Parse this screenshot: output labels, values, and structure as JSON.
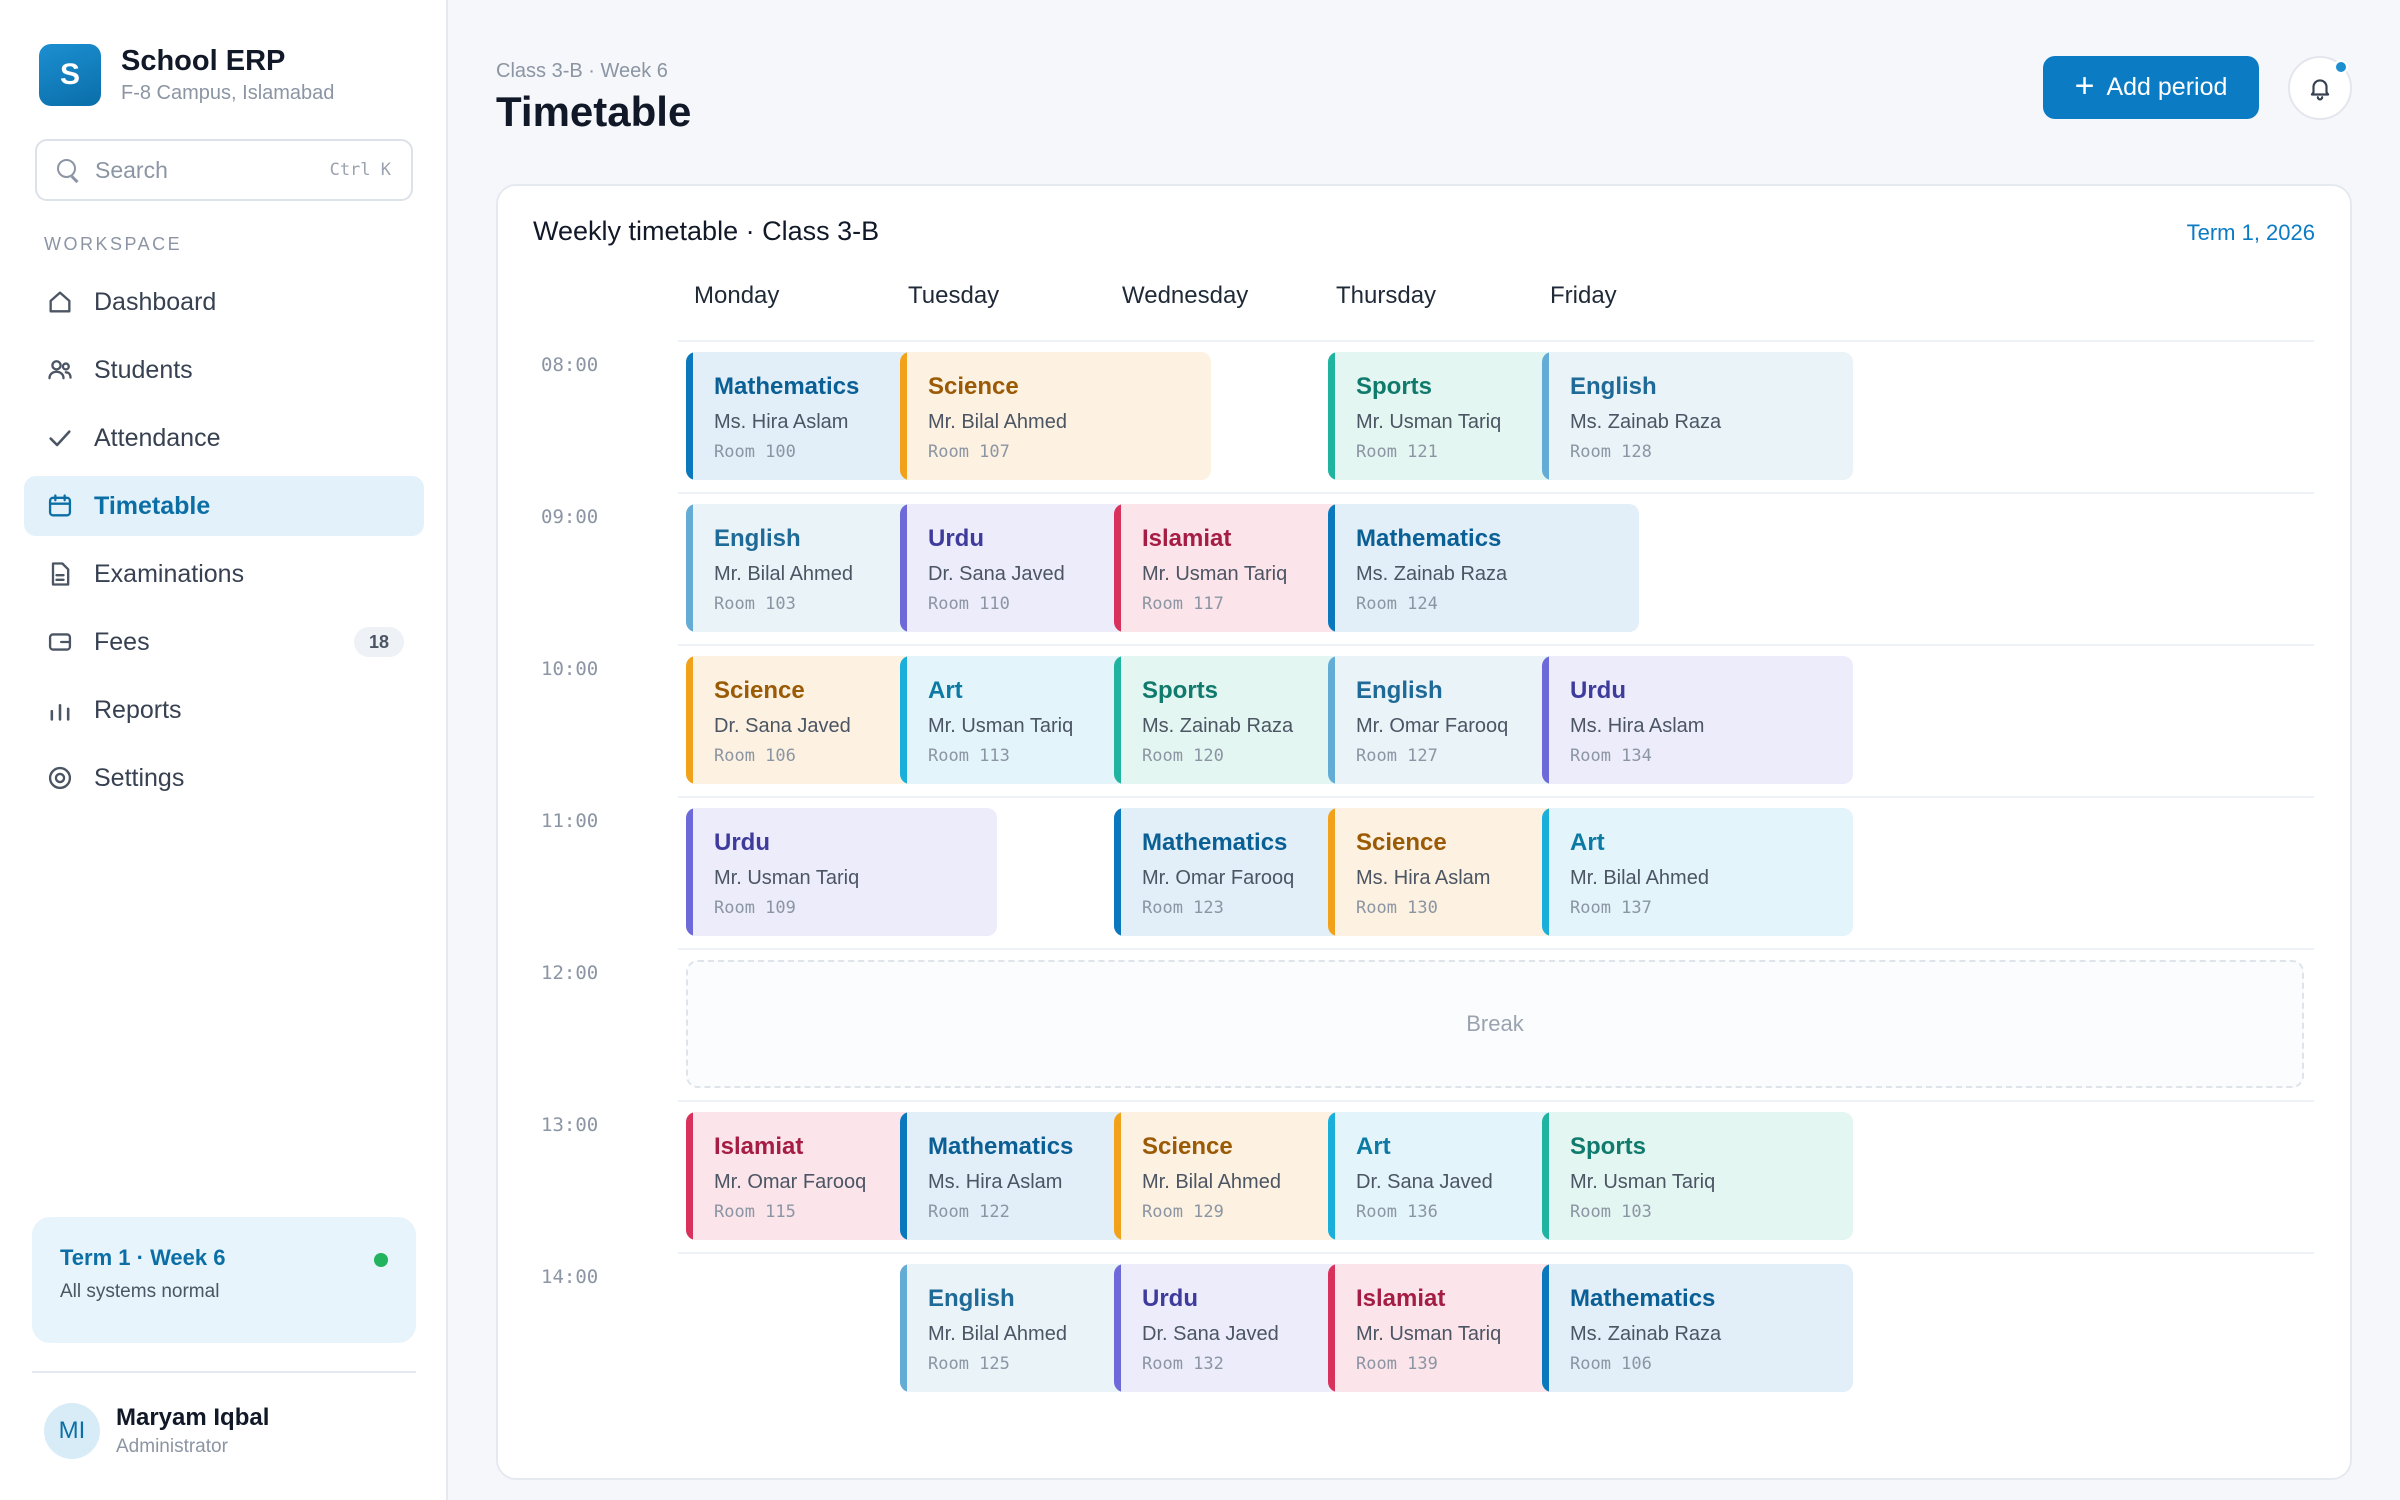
{
  "app": {
    "title": "School ERP",
    "subtitle": "F-8 Campus, Islamabad",
    "logo_letter": "S",
    "accent_color": "#0b7bc4"
  },
  "search": {
    "placeholder": "Search",
    "shortcut": "Ctrl K"
  },
  "sidebar": {
    "section_label": "WORKSPACE",
    "items": [
      {
        "label": "Dashboard",
        "icon": "home-icon"
      },
      {
        "label": "Students",
        "icon": "users-icon"
      },
      {
        "label": "Attendance",
        "icon": "check-icon"
      },
      {
        "label": "Timetable",
        "icon": "calendar-icon",
        "active": true
      },
      {
        "label": "Examinations",
        "icon": "document-icon"
      },
      {
        "label": "Fees",
        "icon": "wallet-icon",
        "badge": "18"
      },
      {
        "label": "Reports",
        "icon": "bar-chart-icon"
      },
      {
        "label": "Settings",
        "icon": "gear-icon"
      }
    ]
  },
  "term_card": {
    "title": "Term 1 · Week 6",
    "status": "All systems normal",
    "status_color": "#22b35e"
  },
  "user": {
    "initials": "MI",
    "name": "Maryam Iqbal",
    "role": "Administrator"
  },
  "header": {
    "breadcrumb": "Class 3-B · Week 6",
    "title": "Timetable",
    "add_button": "Add period",
    "notification_icon": "bell-icon"
  },
  "timetable": {
    "title": "Weekly timetable · Class 3-B",
    "term": "Term 1, 2026",
    "days": [
      "Monday",
      "Tuesday",
      "Wednesday",
      "Thursday",
      "Friday"
    ],
    "times": [
      "08:00",
      "09:00",
      "10:00",
      "11:00",
      "12:00",
      "13:00",
      "14:00"
    ],
    "break_label": "Break",
    "slots": [
      [
        {
          "subject": "Mathematics",
          "teacher": "Ms. Hira Aslam",
          "room": "Room 100",
          "type": "math"
        },
        {
          "subject": "Science",
          "teacher": "Mr. Bilal Ahmed",
          "room": "Room 107",
          "type": "sci"
        },
        null,
        {
          "subject": "Sports",
          "teacher": "Mr. Usman Tariq",
          "room": "Room 121",
          "type": "sports"
        },
        {
          "subject": "English",
          "teacher": "Ms. Zainab Raza",
          "room": "Room 128",
          "type": "eng"
        }
      ],
      [
        {
          "subject": "English",
          "teacher": "Mr. Bilal Ahmed",
          "room": "Room 103",
          "type": "eng"
        },
        {
          "subject": "Urdu",
          "teacher": "Dr. Sana Javed",
          "room": "Room 110",
          "type": "urdu"
        },
        {
          "subject": "Islamiat",
          "teacher": "Mr. Usman Tariq",
          "room": "Room 117",
          "type": "islamiat"
        },
        {
          "subject": "Mathematics",
          "teacher": "Ms. Zainab Raza",
          "room": "Room 124",
          "type": "math"
        },
        null
      ],
      [
        {
          "subject": "Science",
          "teacher": "Dr. Sana Javed",
          "room": "Room 106",
          "type": "sci"
        },
        {
          "subject": "Art",
          "teacher": "Mr. Usman Tariq",
          "room": "Room 113",
          "type": "art"
        },
        {
          "subject": "Sports",
          "teacher": "Ms. Zainab Raza",
          "room": "Room 120",
          "type": "sports"
        },
        {
          "subject": "English",
          "teacher": "Mr. Omar Farooq",
          "room": "Room 127",
          "type": "eng"
        },
        {
          "subject": "Urdu",
          "teacher": "Ms. Hira Aslam",
          "room": "Room 134",
          "type": "urdu"
        }
      ],
      [
        {
          "subject": "Urdu",
          "teacher": "Mr. Usman Tariq",
          "room": "Room 109",
          "type": "urdu"
        },
        null,
        {
          "subject": "Mathematics",
          "teacher": "Mr. Omar Farooq",
          "room": "Room 123",
          "type": "math"
        },
        {
          "subject": "Science",
          "teacher": "Ms. Hira Aslam",
          "room": "Room 130",
          "type": "sci"
        },
        {
          "subject": "Art",
          "teacher": "Mr. Bilal Ahmed",
          "room": "Room 137",
          "type": "art"
        }
      ],
      "break",
      [
        {
          "subject": "Islamiat",
          "teacher": "Mr. Omar Farooq",
          "room": "Room 115",
          "type": "islamiat"
        },
        {
          "subject": "Mathematics",
          "teacher": "Ms. Hira Aslam",
          "room": "Room 122",
          "type": "math"
        },
        {
          "subject": "Science",
          "teacher": "Mr. Bilal Ahmed",
          "room": "Room 129",
          "type": "sci"
        },
        {
          "subject": "Art",
          "teacher": "Dr. Sana Javed",
          "room": "Room 136",
          "type": "art"
        },
        {
          "subject": "Sports",
          "teacher": "Mr. Usman Tariq",
          "room": "Room 103",
          "type": "sports"
        }
      ],
      [
        null,
        {
          "subject": "English",
          "teacher": "Mr. Bilal Ahmed",
          "room": "Room 125",
          "type": "eng"
        },
        {
          "subject": "Urdu",
          "teacher": "Dr. Sana Javed",
          "room": "Room 132",
          "type": "urdu"
        },
        {
          "subject": "Islamiat",
          "teacher": "Mr. Usman Tariq",
          "room": "Room 139",
          "type": "islamiat"
        },
        {
          "subject": "Mathematics",
          "teacher": "Ms. Zainab Raza",
          "room": "Room 106",
          "type": "math"
        }
      ]
    ]
  }
}
